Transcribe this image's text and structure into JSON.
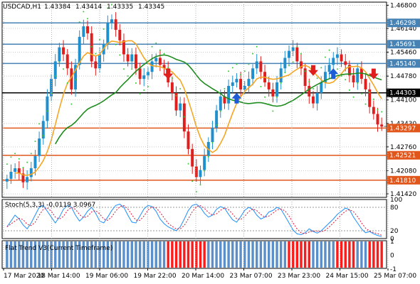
{
  "chart_data": [
    {
      "type": "candlestick",
      "symbol_header": "USDCAD,H1",
      "ohlc_header": [
        "1.43384",
        "1.43414",
        "1.43335",
        "1.43345"
      ],
      "y_ticks": [
        "1.46800",
        "1.46140",
        "1.45460",
        "1.44780",
        "1.44100",
        "1.43430",
        "1.42760",
        "1.42080",
        "1.41420"
      ],
      "ylim": [
        1.4132,
        1.4689
      ],
      "x_labels": [
        "17 Mar 2020",
        "18 Mar 14:00",
        "19 Mar 06:00",
        "19 Mar 22:00",
        "20 Mar 14:00",
        "23 Mar 07:00",
        "23 Mar 23:00",
        "24 Mar 15:00",
        "25 Mar 07:00"
      ],
      "horizontal_levels": [
        {
          "value": "1.46298",
          "color": "#4682b4"
        },
        {
          "value": "1.45691",
          "color": "#4682b4"
        },
        {
          "value": "1.45140",
          "color": "#4682b4"
        },
        {
          "value": "1.44303",
          "color": "#000000"
        },
        {
          "value": "1.43297",
          "color": "#e0561b"
        },
        {
          "value": "1.42521",
          "color": "#e0561b"
        },
        {
          "value": "1.41810",
          "color": "#e0561b"
        }
      ],
      "closes": [
        1.4185,
        1.4205,
        1.4215,
        1.42,
        1.4175,
        1.419,
        1.4215,
        1.425,
        1.43,
        1.435,
        1.442,
        1.447,
        1.452,
        1.456,
        1.454,
        1.45,
        1.444,
        1.451,
        1.459,
        1.462,
        1.46,
        1.452,
        1.45,
        1.454,
        1.457,
        1.463,
        1.464,
        1.461,
        1.458,
        1.454,
        1.452,
        1.454,
        1.45,
        1.447,
        1.448,
        1.449,
        1.452,
        1.453,
        1.451,
        1.45,
        1.446,
        1.443,
        1.438,
        1.44,
        1.432,
        1.427,
        1.422,
        1.419,
        1.421,
        1.425,
        1.429,
        1.433,
        1.438,
        1.442,
        1.44,
        1.445,
        1.446,
        1.447,
        1.444,
        1.445,
        1.447,
        1.45,
        1.452,
        1.449,
        1.446,
        1.444,
        1.442,
        1.446,
        1.45,
        1.453,
        1.455,
        1.456,
        1.452,
        1.45,
        1.445,
        1.442,
        1.44,
        1.443,
        1.446,
        1.449,
        1.451,
        1.453,
        1.454,
        1.452,
        1.451,
        1.448,
        1.446,
        1.45,
        1.447,
        1.444,
        1.439,
        1.437,
        1.434,
        1.4334
      ],
      "moving_averages": [
        {
          "color": "#f5a623"
        },
        {
          "color": "#1e8c1e"
        }
      ],
      "parabolic_sar_color": "#32cd32",
      "signals": [
        {
          "type": "sell",
          "index": 40,
          "value": 1.4475
        },
        {
          "type": "buy",
          "index": 57,
          "value": 1.442
        },
        {
          "type": "sell",
          "index": 76,
          "value": 1.4485
        },
        {
          "type": "buy",
          "index": 81,
          "value": 1.449
        },
        {
          "type": "sell",
          "index": 91,
          "value": 1.4475
        }
      ],
      "last_price": "1.43345"
    },
    {
      "type": "line",
      "label": "Stoch(5,3,3) -0.0119 3.0967",
      "ylim": [
        0,
        100
      ],
      "y_ticks": [
        "100",
        "80",
        "20",
        "0"
      ],
      "main_color": "#1e90ff",
      "signal_color": "#dc143c",
      "values": [
        30,
        45,
        60,
        50,
        35,
        25,
        40,
        60,
        80,
        85,
        70,
        55,
        40,
        55,
        75,
        85,
        80,
        60,
        45,
        55,
        70,
        80,
        65,
        45,
        40,
        55,
        72,
        85,
        88,
        80,
        60,
        42,
        40,
        58,
        76,
        85,
        82,
        70,
        50,
        38,
        30,
        25,
        20,
        30,
        50,
        72,
        85,
        88,
        80,
        65,
        55,
        60,
        75,
        82,
        78,
        62,
        48,
        42,
        56,
        72,
        80,
        75,
        60,
        50,
        55,
        68,
        72,
        80,
        75,
        58,
        40,
        22,
        12,
        10,
        15,
        25,
        18,
        14,
        20,
        30,
        40,
        50,
        62,
        70,
        78,
        74,
        55,
        40,
        25,
        15,
        18,
        12,
        8,
        5
      ]
    },
    {
      "type": "bar",
      "label": "Flat Trend V3(Current Timeframe)",
      "ylim": [
        0,
        1
      ],
      "y_ticks": [
        "1",
        "0",
        "-1"
      ],
      "states": [
        {
          "start": 0,
          "end": 40,
          "color": "#5b8fc9"
        },
        {
          "start": 40,
          "end": 50,
          "color": "#ff1a1a"
        },
        {
          "start": 50,
          "end": 70,
          "color": "#5b8fc9"
        },
        {
          "start": 70,
          "end": 76,
          "color": "#ff1a1a"
        },
        {
          "start": 76,
          "end": 82,
          "color": "#5b8fc9"
        },
        {
          "start": 82,
          "end": 87,
          "color": "#ff1a1a"
        },
        {
          "start": 87,
          "end": 90,
          "color": "#5b8fc9"
        },
        {
          "start": 90,
          "end": 94,
          "color": "#ff1a1a"
        }
      ]
    }
  ]
}
